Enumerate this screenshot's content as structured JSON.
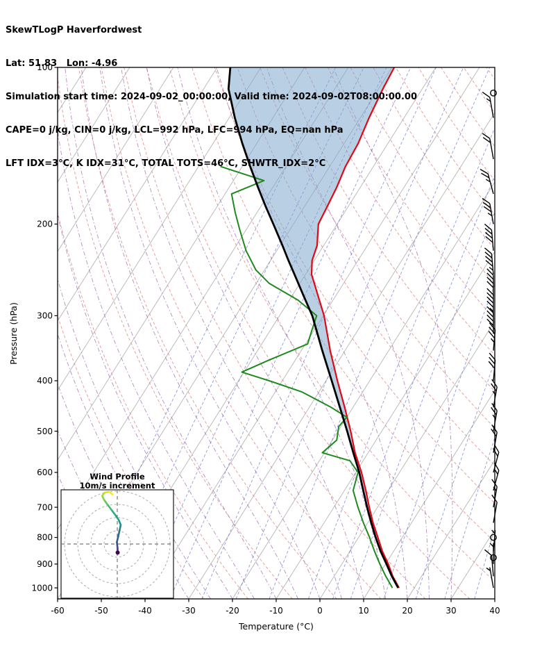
{
  "header": {
    "line1": "SkewTLogP Haverfordwest",
    "line2": "Lat: 51.83   Lon: -4.96",
    "line3": "Simulation start time: 2024-09-02_00:00:00, Valid time: 2024-09-02T08:00:00.00",
    "line4": "CAPE=0 j/kg, CIN=0 j/kg, LCL=992 hPa, LFC=994 hPa, EQ=nan hPa",
    "line5": "LFT IDX=3°C, K IDX=31°C, TOTAL TOTS=46°C, SHWTR_IDX=2°C"
  },
  "chart_data": {
    "type": "line",
    "variant": "skew-t-log-p",
    "title": "SkewTLogP Haverfordwest",
    "xlabel": "Temperature (°C)",
    "ylabel": "Pressure (hPa)",
    "xlim": [
      -60,
      40
    ],
    "ylim": [
      1050,
      100
    ],
    "x_ticks": [
      -60,
      -50,
      -40,
      -30,
      -20,
      -10,
      0,
      10,
      20,
      30,
      40
    ],
    "y_ticks": [
      100,
      200,
      300,
      400,
      500,
      600,
      700,
      800,
      900,
      1000
    ],
    "grid": "skewed isotherms, dry adiabats, moist adiabats, mixing ratio lines",
    "series": {
      "temperature": {
        "name": "temperature",
        "color": "#e30613",
        "pressure": [
          1000,
          950,
          900,
          850,
          800,
          750,
          700,
          650,
          600,
          550,
          500,
          450,
          400,
          350,
          300,
          275,
          250,
          235,
          220,
          200,
          185,
          170,
          155,
          140,
          125,
          110,
          100
        ],
        "values": [
          16.5,
          13.4,
          10.6,
          7.4,
          4.4,
          1.2,
          -1.9,
          -5.1,
          -8.7,
          -13.0,
          -17.1,
          -21.9,
          -27.4,
          -33.4,
          -39.8,
          -44.0,
          -48.6,
          -50.5,
          -51.5,
          -54.3,
          -54.8,
          -55.4,
          -56.4,
          -56.8,
          -58.0,
          -59.0,
          -59.5
        ]
      },
      "parcel": {
        "name": "parcel trajectory",
        "color": "#000000",
        "pressure": [
          1000,
          950,
          900,
          850,
          800,
          750,
          700,
          650,
          600,
          550,
          500,
          450,
          400,
          350,
          300,
          275,
          250,
          235,
          220,
          200,
          185,
          170,
          155,
          140,
          125,
          110,
          100
        ],
        "values": [
          16.3,
          13.2,
          10.2,
          7.0,
          3.9,
          0.8,
          -2.4,
          -5.7,
          -9.2,
          -13.4,
          -17.9,
          -23.0,
          -28.7,
          -35.2,
          -42.5,
          -47.3,
          -52.5,
          -55.9,
          -59.4,
          -64.6,
          -68.9,
          -73.4,
          -78.2,
          -83.3,
          -88.7,
          -94.3,
          -97.0
        ]
      },
      "dewpoint": {
        "name": "dewpoint",
        "color": "#1e8a1e",
        "pressure": [
          1000,
          950,
          900,
          850,
          800,
          750,
          700,
          650,
          600,
          570,
          550,
          520,
          490,
          470,
          450,
          420,
          400,
          385,
          365,
          340,
          320,
          300,
          280,
          260,
          245,
          225,
          205,
          190,
          175,
          165,
          155
        ],
        "values": [
          15.0,
          11.8,
          8.7,
          5.6,
          2.5,
          -1.0,
          -4.5,
          -8.0,
          -9.5,
          -13.0,
          -20.5,
          -19.0,
          -20.5,
          -20.0,
          -25.0,
          -34.0,
          -43.0,
          -50.5,
          -46.0,
          -39.5,
          -40.5,
          -41.5,
          -48.0,
          -57.0,
          -62.0,
          -67.0,
          -71.5,
          -75.0,
          -78.5,
          -73.0,
          -85.0
        ]
      }
    },
    "shade": {
      "between": [
        "parcel",
        "temperature"
      ],
      "color": "#7fa8cc",
      "opacity": 0.55
    },
    "background": {
      "isotherms": {
        "color": "#b5b5b5",
        "start": -160,
        "end": 40,
        "step": 10
      },
      "dry_adiabats": {
        "color": "#dd7d7d",
        "theta_start": -30,
        "theta_end": 180,
        "step": 10
      },
      "moist_adiabats": {
        "color": "#9e66ab",
        "t0_start": -45,
        "t0_end": 30,
        "step": 5
      },
      "mixing_lines": {
        "color": "#5563cc",
        "values": [
          0.02,
          0.05,
          0.1,
          0.2,
          0.4,
          0.8,
          1.5,
          3,
          4.5,
          6,
          10,
          16,
          24,
          36
        ]
      }
    },
    "wind_barbs": [
      {
        "p": 112,
        "kt": 0,
        "dir": 0
      },
      {
        "p": 125,
        "kt": 15,
        "dir": 350
      },
      {
        "p": 150,
        "kt": 20,
        "dir": 350
      },
      {
        "p": 175,
        "kt": 25,
        "dir": 345
      },
      {
        "p": 200,
        "kt": 35,
        "dir": 350
      },
      {
        "p": 225,
        "kt": 40,
        "dir": 355
      },
      {
        "p": 250,
        "kt": 45,
        "dir": 355
      },
      {
        "p": 275,
        "kt": 40,
        "dir": 0
      },
      {
        "p": 300,
        "kt": 45,
        "dir": 0
      },
      {
        "p": 325,
        "kt": 40,
        "dir": 0
      },
      {
        "p": 350,
        "kt": 35,
        "dir": 5
      },
      {
        "p": 400,
        "kt": 30,
        "dir": 5
      },
      {
        "p": 450,
        "kt": 25,
        "dir": 10
      },
      {
        "p": 500,
        "kt": 25,
        "dir": 10
      },
      {
        "p": 550,
        "kt": 20,
        "dir": 10
      },
      {
        "p": 600,
        "kt": 20,
        "dir": 15
      },
      {
        "p": 650,
        "kt": 15,
        "dir": 15
      },
      {
        "p": 700,
        "kt": 15,
        "dir": 10
      },
      {
        "p": 750,
        "kt": 10,
        "dir": 10
      },
      {
        "p": 800,
        "kt": 0,
        "dir": 0
      },
      {
        "p": 850,
        "kt": 5,
        "dir": 5
      },
      {
        "p": 875,
        "kt": 0,
        "dir": 0
      },
      {
        "p": 900,
        "kt": 5,
        "dir": 0
      },
      {
        "p": 950,
        "kt": 10,
        "dir": 355
      },
      {
        "p": 1000,
        "kt": 5,
        "dir": 350
      }
    ],
    "hodograph": {
      "title1": "Wind Profile",
      "title2": "10m/s increment",
      "ring_step_ms": 10,
      "rings": [
        10,
        20,
        30,
        40
      ],
      "points": [
        {
          "u": 0.3,
          "v": -6.5,
          "c": "#440154"
        },
        {
          "u": 0.2,
          "v": -3.0,
          "c": "#46327e"
        },
        {
          "u": -0.3,
          "v": 1.5,
          "c": "#3f4a8a"
        },
        {
          "u": 0.8,
          "v": 6.0,
          "c": "#365c8d"
        },
        {
          "u": 1.8,
          "v": 10.5,
          "c": "#2e6e8e"
        },
        {
          "u": 2.6,
          "v": 14.5,
          "c": "#277f8e"
        },
        {
          "u": 1.2,
          "v": 18.0,
          "c": "#21918c"
        },
        {
          "u": -1.5,
          "v": 22.0,
          "c": "#1fa187"
        },
        {
          "u": -4.5,
          "v": 26.0,
          "c": "#28ae80"
        },
        {
          "u": -7.5,
          "v": 30.0,
          "c": "#3fbc73"
        },
        {
          "u": -10.0,
          "v": 33.5,
          "c": "#5ec962"
        },
        {
          "u": -11.5,
          "v": 36.5,
          "c": "#84d44b"
        },
        {
          "u": -9.5,
          "v": 39.0,
          "c": "#addc30"
        },
        {
          "u": -6.0,
          "v": 39.5,
          "c": "#d8e219"
        },
        {
          "u": -3.5,
          "v": 37.5,
          "c": "#fde725"
        }
      ]
    }
  }
}
